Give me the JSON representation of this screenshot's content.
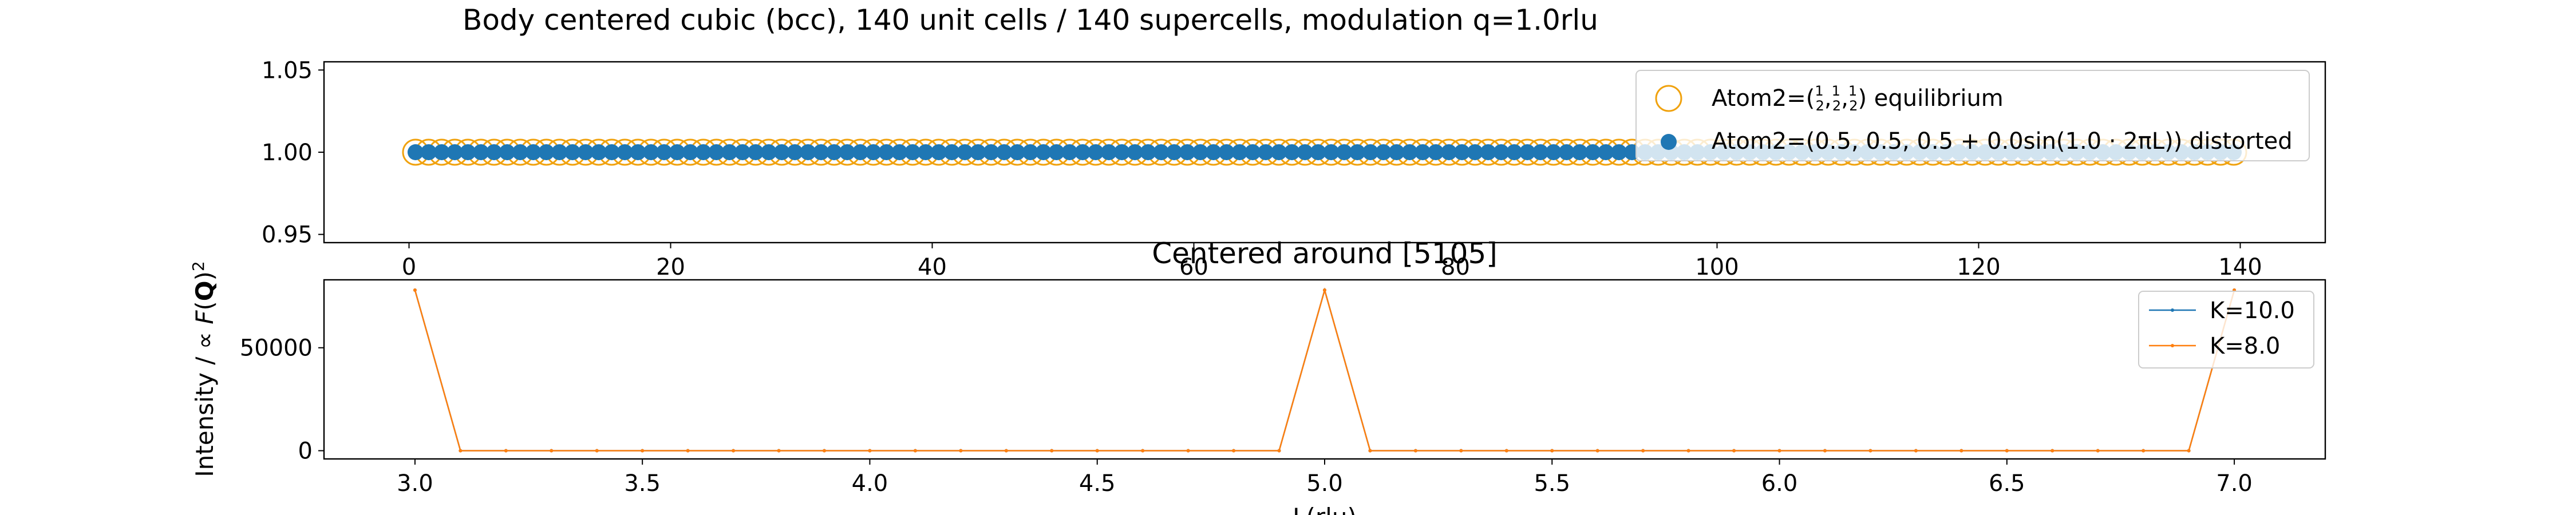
{
  "figure": {
    "title": "Body centered cubic (bcc), 140 unit cells / 140 supercells, modulation q=1.0rlu"
  },
  "chart_data": [
    {
      "type": "scatter",
      "title": "",
      "xlabel": "",
      "ylabel": "",
      "xlim": [
        -6.5,
        146.5
      ],
      "ylim": [
        0.945,
        1.055
      ],
      "xticks": [
        0,
        20,
        40,
        60,
        80,
        100,
        120,
        140
      ],
      "yticks": [
        0.95,
        1.0,
        1.05
      ],
      "ytick_labels": [
        "0.95",
        "1.00",
        "1.05"
      ],
      "grid": false,
      "legend_position": "top-right",
      "series": [
        {
          "name": "Atom2=(1/2, 1/2, 1/2) equilibrium",
          "marker": "hollow-circle",
          "color": "#f0a20f",
          "x_start": 0.5,
          "x_step": 1,
          "count": 140,
          "y": 1.0
        },
        {
          "name": "Atom2=(0.5, 0.5, 0.5 + 0.0sin(1.0 · 2πL)) distorted",
          "marker": "filled-circle",
          "color": "#1f77b4",
          "x_start": 0.5,
          "x_step": 1,
          "count": 140,
          "y": 1.0
        }
      ],
      "legend": {
        "equilibrium": {
          "prefix": "Atom2=(",
          "frac_num": "1",
          "frac_den": "2",
          "sep": ",",
          "suffix": ") equilibrium"
        },
        "distorted": "Atom2=(0.5, 0.5, 0.5 + 0.0sin(1.0 · 2πL)) distorted"
      }
    },
    {
      "type": "line",
      "title": "Centered around [5105]",
      "xlabel": "L(rlu)",
      "ylabel": "Intensity / ∝ F(Q)²",
      "ylabel_parts": {
        "pre": "Intensity / ∝ ",
        "F": "F",
        "open": "(",
        "Q": "Q",
        "close": ")",
        "sup": "2"
      },
      "xlim": [
        2.8,
        7.2
      ],
      "ylim": [
        -4000,
        83000
      ],
      "xticks": [
        3.0,
        3.5,
        4.0,
        4.5,
        5.0,
        5.5,
        6.0,
        6.5,
        7.0
      ],
      "xtick_labels": [
        "3.0",
        "3.5",
        "4.0",
        "4.5",
        "5.0",
        "5.5",
        "6.0",
        "6.5",
        "7.0"
      ],
      "yticks": [
        0,
        50000
      ],
      "ytick_labels": [
        "0",
        "50000"
      ],
      "grid": false,
      "legend_position": "top-right",
      "x_start": 3.0,
      "x_step": 0.1,
      "series": [
        {
          "name": "K=10.0",
          "color": "#1f77b4",
          "values": [
            78000,
            0,
            0,
            0,
            0,
            0,
            0,
            0,
            0,
            0,
            0,
            0,
            0,
            0,
            0,
            0,
            0,
            0,
            0,
            0,
            78000,
            0,
            0,
            0,
            0,
            0,
            0,
            0,
            0,
            0,
            0,
            0,
            0,
            0,
            0,
            0,
            0,
            0,
            0,
            0,
            78000
          ]
        },
        {
          "name": "K=8.0",
          "color": "#ff7f0e",
          "values": [
            78000,
            0,
            0,
            0,
            0,
            0,
            0,
            0,
            0,
            0,
            0,
            0,
            0,
            0,
            0,
            0,
            0,
            0,
            0,
            0,
            78000,
            0,
            0,
            0,
            0,
            0,
            0,
            0,
            0,
            0,
            0,
            0,
            0,
            0,
            0,
            0,
            0,
            0,
            0,
            0,
            78000
          ]
        }
      ]
    }
  ]
}
